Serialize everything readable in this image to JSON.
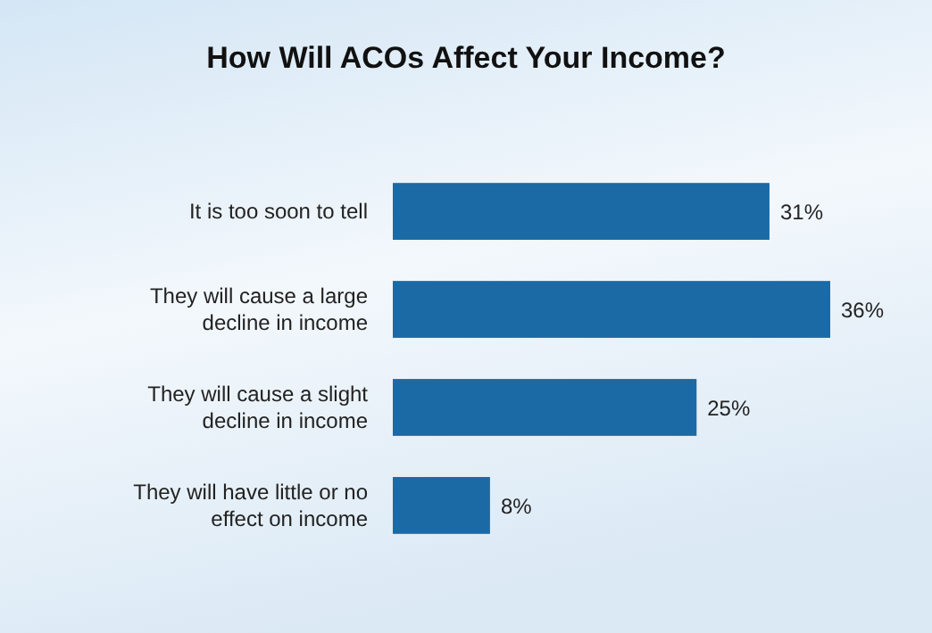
{
  "chart_data": {
    "type": "bar",
    "orientation": "horizontal",
    "title": "How Will ACOs Affect Your Income?",
    "categories": [
      "It is too soon to tell",
      "They will cause a large decline in income",
      "They will cause a slight decline in income",
      "They will have little or no effect on income"
    ],
    "values": [
      31,
      36,
      25,
      8
    ],
    "value_labels": [
      "31%",
      "36%",
      "25%",
      "8%"
    ],
    "color": "#1b6aa5"
  }
}
